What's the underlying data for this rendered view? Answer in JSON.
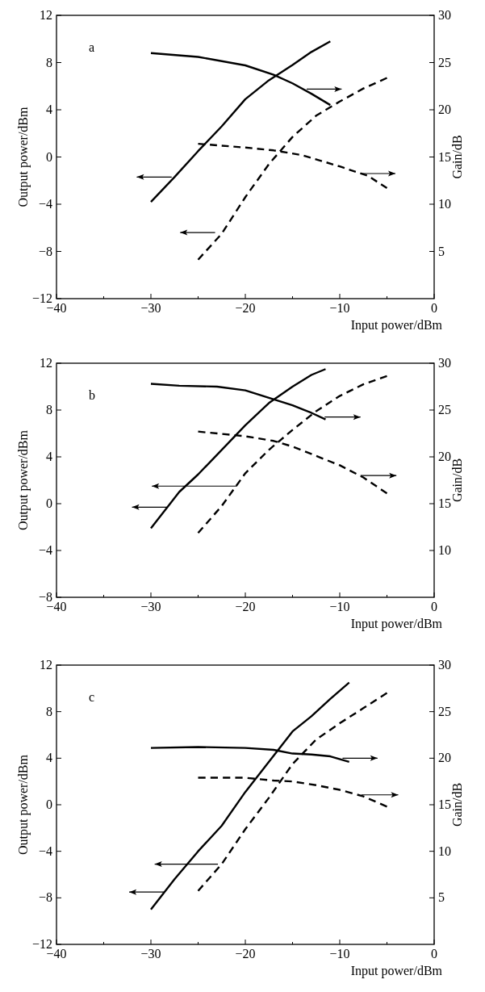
{
  "chart_data": [
    {
      "type": "line",
      "xlabel": "Input power/dBm",
      "ylabel": "Output power/dBm",
      "y2label": "Gain/dB",
      "annotations": [
        "a"
      ],
      "xlim": [
        -40,
        0
      ],
      "xticks": [
        -40,
        {
          "value": -35,
          "label": null
        },
        -30,
        {
          "value": -25,
          "label": null
        },
        -20,
        {
          "value": -15,
          "label": null
        },
        -10,
        {
          "value": -5,
          "label": null
        },
        0
      ],
      "ylim": [
        -12,
        12
      ],
      "yticks": [
        -12,
        -8,
        -4,
        0,
        4,
        8,
        12
      ],
      "y2lim": [
        0,
        30
      ],
      "y2ticks": [
        5,
        10,
        15,
        20,
        25,
        30
      ],
      "grid": false,
      "marker": "none",
      "series": [
        {
          "color": "#000000",
          "line_style": "solid",
          "x": [
            -30,
            -27.5,
            -25,
            -22.5,
            -20,
            -17.5,
            -15,
            -13,
            -11
          ],
          "values": [
            -3.8,
            -1.7,
            0.5,
            2.6,
            4.9,
            6.5,
            7.8,
            8.9,
            9.8
          ]
        },
        {
          "color": "#000000",
          "line_style": "solid",
          "axis": "y2",
          "x": [
            -30,
            -25,
            -20,
            -17,
            -15,
            -13,
            -11
          ],
          "values": [
            26.0,
            25.6,
            24.7,
            23.7,
            22.8,
            21.7,
            20.5
          ]
        },
        {
          "color": "#000000",
          "line_style": "dashed",
          "x": [
            -25,
            -22.5,
            -20,
            -17.5,
            -15,
            -12.5,
            -10,
            -7.5,
            -5
          ],
          "values": [
            -8.7,
            -6.5,
            -3.4,
            -0.6,
            1.7,
            3.5,
            4.7,
            5.8,
            6.7
          ]
        },
        {
          "color": "#000000",
          "line_style": "dashed",
          "axis": "y2",
          "x": [
            -25,
            -20,
            -17,
            -14,
            -10,
            -7,
            -5
          ],
          "values": [
            16.4,
            16.0,
            15.7,
            15.2,
            14.0,
            13.0,
            11.7
          ]
        }
      ]
    },
    {
      "type": "line",
      "xlabel": "Input power/dBm",
      "ylabel": "Output power/dBm",
      "y2label": "Gain/dB",
      "annotations": [
        "b"
      ],
      "xlim": [
        -40,
        0
      ],
      "xticks": [
        -40,
        {
          "value": -35,
          "label": null
        },
        -30,
        {
          "value": -25,
          "label": null
        },
        -20,
        {
          "value": -15,
          "label": null
        },
        -10,
        {
          "value": -5,
          "label": null
        },
        0
      ],
      "ylim": [
        -8,
        12
      ],
      "yticks": [
        -8,
        -4,
        0,
        4,
        8,
        12
      ],
      "y2lim": [
        5,
        30
      ],
      "y2ticks": [
        10,
        15,
        20,
        25,
        30
      ],
      "grid": false,
      "marker": "none",
      "series": [
        {
          "color": "#000000",
          "line_style": "solid",
          "x": [
            -30,
            -27,
            -25,
            -22.5,
            -20,
            -17.5,
            -15,
            -13,
            -11.5
          ],
          "values": [
            -2.1,
            1.0,
            2.5,
            4.6,
            6.7,
            8.6,
            10.0,
            11.0,
            11.5
          ]
        },
        {
          "color": "#000000",
          "line_style": "solid",
          "axis": "y2",
          "x": [
            -30,
            -27,
            -23,
            -20,
            -17.5,
            -15,
            -13,
            -11.5
          ],
          "values": [
            27.8,
            27.6,
            27.5,
            27.1,
            26.3,
            25.5,
            24.7,
            24.0
          ]
        },
        {
          "color": "#000000",
          "line_style": "dashed",
          "x": [
            -25,
            -22.5,
            -20,
            -17.5,
            -15,
            -12.5,
            -10,
            -7.5,
            -5
          ],
          "values": [
            -2.5,
            -0.2,
            2.6,
            4.6,
            6.3,
            7.9,
            9.2,
            10.2,
            10.9
          ]
        },
        {
          "color": "#000000",
          "line_style": "dashed",
          "axis": "y2",
          "x": [
            -25,
            -20,
            -17,
            -15,
            -12.5,
            -10,
            -7.5,
            -5
          ],
          "values": [
            22.7,
            22.2,
            21.7,
            21.1,
            20.1,
            19.1,
            17.8,
            16.1
          ]
        }
      ]
    },
    {
      "type": "line",
      "xlabel": "Input power/dBm",
      "ylabel": "Output power/dBm",
      "y2label": "Gain/dB",
      "annotations": [
        "c"
      ],
      "xlim": [
        -40,
        0
      ],
      "xticks": [
        -40,
        {
          "value": -35,
          "label": null
        },
        -30,
        {
          "value": -25,
          "label": null
        },
        -20,
        {
          "value": -15,
          "label": null
        },
        -10,
        {
          "value": -5,
          "label": null
        },
        0
      ],
      "ylim": [
        -12,
        12
      ],
      "yticks": [
        -12,
        -8,
        -4,
        0,
        4,
        8,
        12
      ],
      "y2lim": [
        0,
        30
      ],
      "y2ticks": [
        5,
        10,
        15,
        20,
        25,
        30
      ],
      "grid": false,
      "marker": "none",
      "series": [
        {
          "color": "#000000",
          "line_style": "solid",
          "x": [
            -30,
            -27.5,
            -25,
            -22.5,
            -20,
            -17.5,
            -15,
            -13,
            -11,
            -9
          ],
          "values": [
            -9.0,
            -6.4,
            -4.0,
            -1.8,
            1.1,
            3.7,
            6.3,
            7.6,
            9.1,
            10.5
          ]
        },
        {
          "color": "#000000",
          "line_style": "solid",
          "axis": "y2",
          "x": [
            -30,
            -25,
            -20,
            -17,
            -15,
            -13,
            -11,
            -9
          ],
          "values": [
            21.1,
            21.2,
            21.1,
            20.9,
            20.5,
            20.4,
            20.2,
            19.6
          ]
        },
        {
          "color": "#000000",
          "line_style": "dashed",
          "x": [
            -25,
            -22.5,
            -20,
            -17.5,
            -15,
            -12.5,
            -10,
            -7.5,
            -5
          ],
          "values": [
            -7.4,
            -5.1,
            -2.1,
            0.6,
            3.5,
            5.6,
            7.0,
            8.3,
            9.6
          ]
        },
        {
          "color": "#000000",
          "line_style": "dashed",
          "axis": "y2",
          "x": [
            -25,
            -20,
            -17,
            -15,
            -12.5,
            -10,
            -7.5,
            -5
          ],
          "values": [
            17.9,
            17.9,
            17.6,
            17.5,
            17.1,
            16.6,
            15.9,
            14.8
          ]
        }
      ]
    }
  ]
}
